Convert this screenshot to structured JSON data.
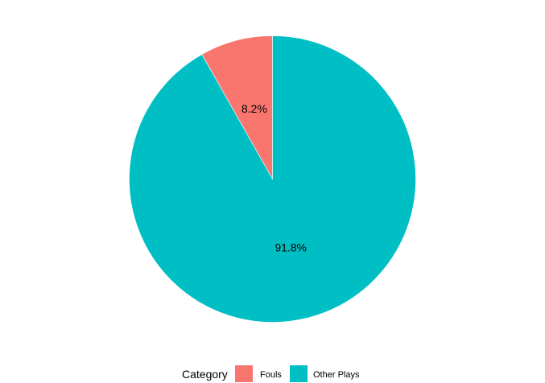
{
  "chart_data": {
    "type": "pie",
    "title": "",
    "categories": [
      "Fouls",
      "Other Plays"
    ],
    "values": [
      8.2,
      91.8
    ],
    "labels": [
      "8.2%",
      "91.8%"
    ],
    "colors": [
      "#F8766D",
      "#00BFC4"
    ],
    "legend": {
      "title": "Category",
      "position": "bottom",
      "entries": [
        "Fouls",
        "Other Plays"
      ]
    }
  }
}
